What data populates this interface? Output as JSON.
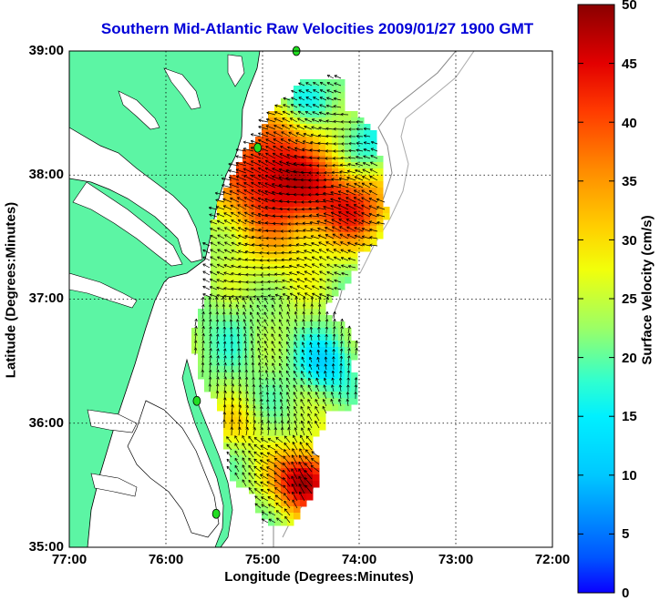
{
  "title": "Southern Mid-Atlantic Raw Velocities 2009/01/27 1900 GMT",
  "chart_data": {
    "type": "heatmap",
    "title": "Southern Mid-Atlantic Raw Velocities 2009/01/27 1900 GMT",
    "xlabel": "Longitude (Degrees:Minutes)",
    "ylabel": "Latitude (Degrees:Minutes)",
    "xlim": [
      -77,
      -72
    ],
    "ylim": [
      35,
      39
    ],
    "xticks": [
      "77:00",
      "76:00",
      "75:00",
      "74:00",
      "73:00",
      "72:00"
    ],
    "yticks": [
      "39:00",
      "38:00",
      "37:00",
      "36:00",
      "35:00"
    ],
    "grid": true,
    "colorbar": {
      "label": "Surface Velocity (cm/s)",
      "range": [
        0,
        50
      ],
      "ticks": [
        "50",
        "45",
        "40",
        "35",
        "30",
        "25",
        "20",
        "15",
        "10",
        "5",
        "0"
      ]
    },
    "colors": {
      "land": "#5cf5a4",
      "title": "#0000d8",
      "stations": "#22dd22"
    },
    "stations": [
      {
        "lon": -75.05,
        "lat": 38.22
      },
      {
        "lon": -74.65,
        "lat": 39.0
      },
      {
        "lon": -75.68,
        "lat": 36.18
      },
      {
        "lon": -75.48,
        "lat": 35.27
      }
    ]
  }
}
